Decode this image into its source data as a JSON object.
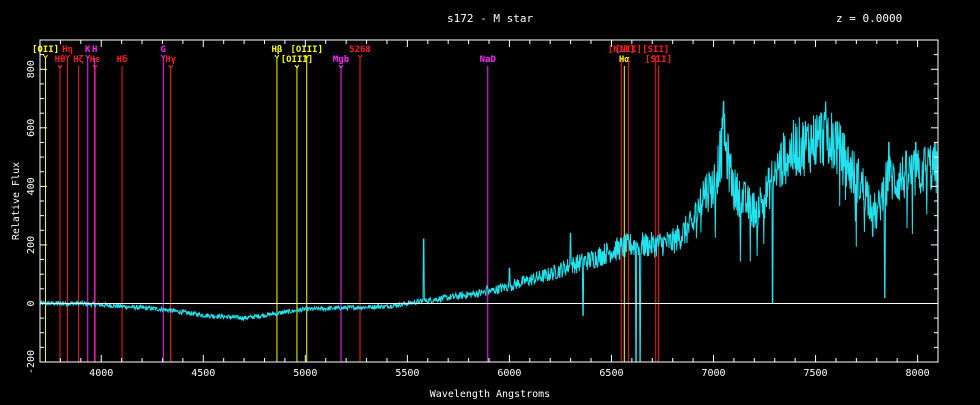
{
  "chart_data": {
    "type": "line",
    "title": "s172 - M star",
    "redshift_label": "z = 0.0000",
    "xlabel": "Wavelength  Angstroms",
    "ylabel": "Relative Flux",
    "xlim": [
      3700,
      8100
    ],
    "ylim": [
      -200,
      900
    ],
    "xticks": [
      4000,
      4500,
      5000,
      5500,
      6000,
      6500,
      7000,
      7500,
      8000
    ],
    "xtick_labels": [
      "4000",
      "4500",
      "5000",
      "5500",
      "6000",
      "6500",
      "7000",
      "7500",
      "8000"
    ],
    "yticks": [
      -200,
      0,
      200,
      400,
      600,
      800
    ],
    "ytick_labels": [
      "-200",
      "0",
      "200",
      "400",
      "600",
      "800"
    ],
    "zero_line": true,
    "grid": false,
    "colors": {
      "background": "#000000",
      "spectrum": "#22e3f0",
      "axes": "#ffffff",
      "yellow": "#ffff00",
      "red": "#ff1a1a",
      "magenta": "#ff22ff"
    },
    "line_markers": [
      {
        "label": "[OII]",
        "wavelength": 3727,
        "color": "yellow",
        "row": 0,
        "arrow": true
      },
      {
        "label": "Hθ",
        "wavelength": 3798,
        "color": "red",
        "row": 1,
        "arrow": true
      },
      {
        "label": "Hη",
        "wavelength": 3835,
        "color": "red",
        "row": 0,
        "arrow": true
      },
      {
        "label": "Hζ",
        "wavelength": 3889,
        "color": "red",
        "row": 1,
        "arrow": false
      },
      {
        "label": "K",
        "wavelength": 3934,
        "color": "magenta",
        "row": 0,
        "arrow": true
      },
      {
        "label": "Hε",
        "wavelength": 3970,
        "color": "red",
        "row": 1,
        "arrow": true
      },
      {
        "label": "H",
        "wavelength": 3968,
        "color": "magenta",
        "row": 0,
        "arrow": false
      },
      {
        "label": "Hδ",
        "wavelength": 4102,
        "color": "red",
        "row": 1,
        "arrow": false
      },
      {
        "label": "G",
        "wavelength": 4304,
        "color": "magenta",
        "row": 0,
        "arrow": true
      },
      {
        "label": "Hγ",
        "wavelength": 4340,
        "color": "red",
        "row": 1,
        "arrow": true
      },
      {
        "label": "Hβ",
        "wavelength": 4861,
        "color": "yellow",
        "row": 0,
        "arrow": true
      },
      {
        "label": "[OIII]",
        "wavelength": 4959,
        "color": "yellow",
        "row": 1,
        "arrow": true
      },
      {
        "label": "[OIII]",
        "wavelength": 5007,
        "color": "yellow",
        "row": 0,
        "arrow": true
      },
      {
        "label": "Mgb",
        "wavelength": 5175,
        "color": "magenta",
        "row": 1,
        "arrow": true
      },
      {
        "label": "5268",
        "wavelength": 5268,
        "color": "red",
        "row": 0,
        "arrow": true
      },
      {
        "label": "NaD",
        "wavelength": 5894,
        "color": "magenta",
        "row": 1,
        "arrow": false
      },
      {
        "label": "[NII]",
        "wavelength": 6548,
        "color": "red",
        "row": 0,
        "arrow": false
      },
      {
        "label": "Hα",
        "wavelength": 6563,
        "color": "yellow",
        "row": 1,
        "arrow": false
      },
      {
        "label": "[NII]",
        "wavelength": 6583,
        "color": "red",
        "row": 0,
        "arrow": false
      },
      {
        "label": "[SII]",
        "wavelength": 6717,
        "color": "red",
        "row": 0,
        "arrow": true
      },
      {
        "label": "[SII]",
        "wavelength": 6731,
        "color": "red",
        "row": 1,
        "arrow": false
      }
    ],
    "spectrum_anchors": {
      "x": [
        3700,
        3900,
        4100,
        4300,
        4500,
        4700,
        4900,
        5000,
        5200,
        5400,
        5500,
        5600,
        5700,
        5800,
        5900,
        6000,
        6100,
        6200,
        6300,
        6400,
        6500,
        6600,
        6700,
        6800,
        6850,
        6900,
        6950,
        7000,
        7050,
        7100,
        7150,
        7200,
        7250,
        7300,
        7350,
        7400,
        7450,
        7500,
        7550,
        7600,
        7650,
        7700,
        7750,
        7800,
        7850,
        7900,
        7950,
        8000,
        8050,
        8100
      ],
      "y": [
        0,
        0,
        -10,
        -20,
        -40,
        -50,
        -30,
        -20,
        -15,
        -10,
        0,
        10,
        20,
        30,
        40,
        60,
        80,
        100,
        130,
        150,
        180,
        200,
        200,
        210,
        240,
        270,
        380,
        400,
        560,
        390,
        350,
        320,
        360,
        440,
        500,
        530,
        540,
        560,
        580,
        540,
        480,
        430,
        380,
        300,
        430,
        420,
        440,
        440,
        470,
        460
      ]
    },
    "spectrum_spikes": [
      {
        "x": 5580,
        "y": 220
      },
      {
        "x": 5890,
        "y": 60
      },
      {
        "x": 6000,
        "y": 120
      },
      {
        "x": 6300,
        "y": 240
      },
      {
        "x": 6360,
        "y": -40
      },
      {
        "x": 6620,
        "y": -200
      },
      {
        "x": 6640,
        "y": -200
      },
      {
        "x": 7050,
        "y": 690
      },
      {
        "x": 7290,
        "y": 0
      },
      {
        "x": 7600,
        "y": 620
      },
      {
        "x": 7780,
        "y": 230
      },
      {
        "x": 7840,
        "y": 20
      },
      {
        "x": 7860,
        "y": 550
      },
      {
        "x": 7990,
        "y": 550
      },
      {
        "x": 8100,
        "y": -80
      }
    ]
  }
}
